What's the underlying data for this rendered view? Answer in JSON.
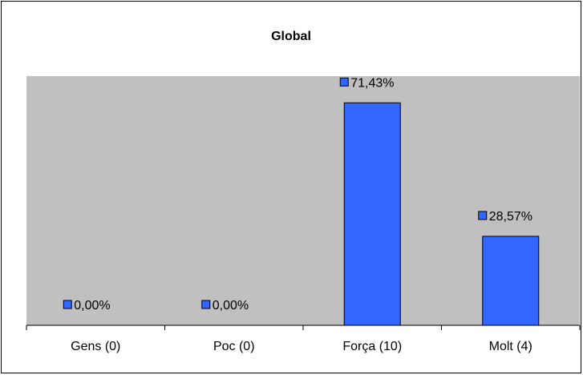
{
  "chart_data": {
    "type": "bar",
    "title": "Global",
    "categories": [
      "Gens (0)",
      "Poc (0)",
      "Força (10)",
      "Molt (4)"
    ],
    "values": [
      0,
      0,
      71.43,
      28.57
    ],
    "data_labels": [
      "0,00%",
      "0,00%",
      "71,43%",
      "28,57%"
    ],
    "ylim": [
      0,
      80
    ],
    "xlabel": "",
    "ylabel": "",
    "grid": false,
    "legend": "none",
    "colors": {
      "bar": "#3366ff",
      "bar_border": "#000000",
      "plot_area": "#c0c0c0",
      "background": "#ffffff",
      "frame": "#000000"
    }
  }
}
